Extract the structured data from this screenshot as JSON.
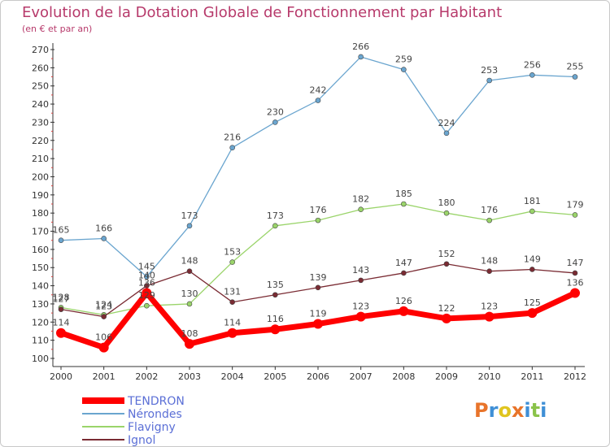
{
  "title": "Evolution de la Dotation Globale de Fonctionnement par Habitant",
  "subtitle": "(en € et par an)",
  "logo": {
    "text": "Proxiti"
  },
  "chart_data": {
    "type": "line",
    "categories": [
      "2000",
      "2001",
      "2002",
      "2003",
      "2004",
      "2005",
      "2006",
      "2007",
      "2008",
      "2009",
      "2010",
      "2011",
      "2012"
    ],
    "ylim": [
      100,
      270
    ],
    "yticks": [
      100,
      110,
      120,
      130,
      140,
      150,
      160,
      170,
      180,
      190,
      200,
      210,
      220,
      230,
      240,
      250,
      260,
      270
    ],
    "grid": false,
    "legend_position": "bottom-left",
    "series": [
      {
        "name": "TENDRON",
        "color": "#ff0000",
        "values": [
          114,
          106,
          136,
          108,
          114,
          116,
          119,
          123,
          126,
          122,
          123,
          125,
          136
        ]
      },
      {
        "name": "Nérondes",
        "color": "#6aa5cf",
        "values": [
          165,
          166,
          145,
          173,
          216,
          230,
          242,
          266,
          259,
          224,
          253,
          256,
          255
        ]
      },
      {
        "name": "Flavigny",
        "color": "#9ad46a",
        "values": [
          128,
          124,
          129,
          130,
          153,
          173,
          176,
          182,
          185,
          180,
          176,
          181,
          179
        ]
      },
      {
        "name": "Ignol",
        "color": "#7a2b33",
        "values": [
          127,
          123,
          140,
          148,
          131,
          135,
          139,
          143,
          147,
          152,
          148,
          149,
          147
        ]
      }
    ]
  }
}
